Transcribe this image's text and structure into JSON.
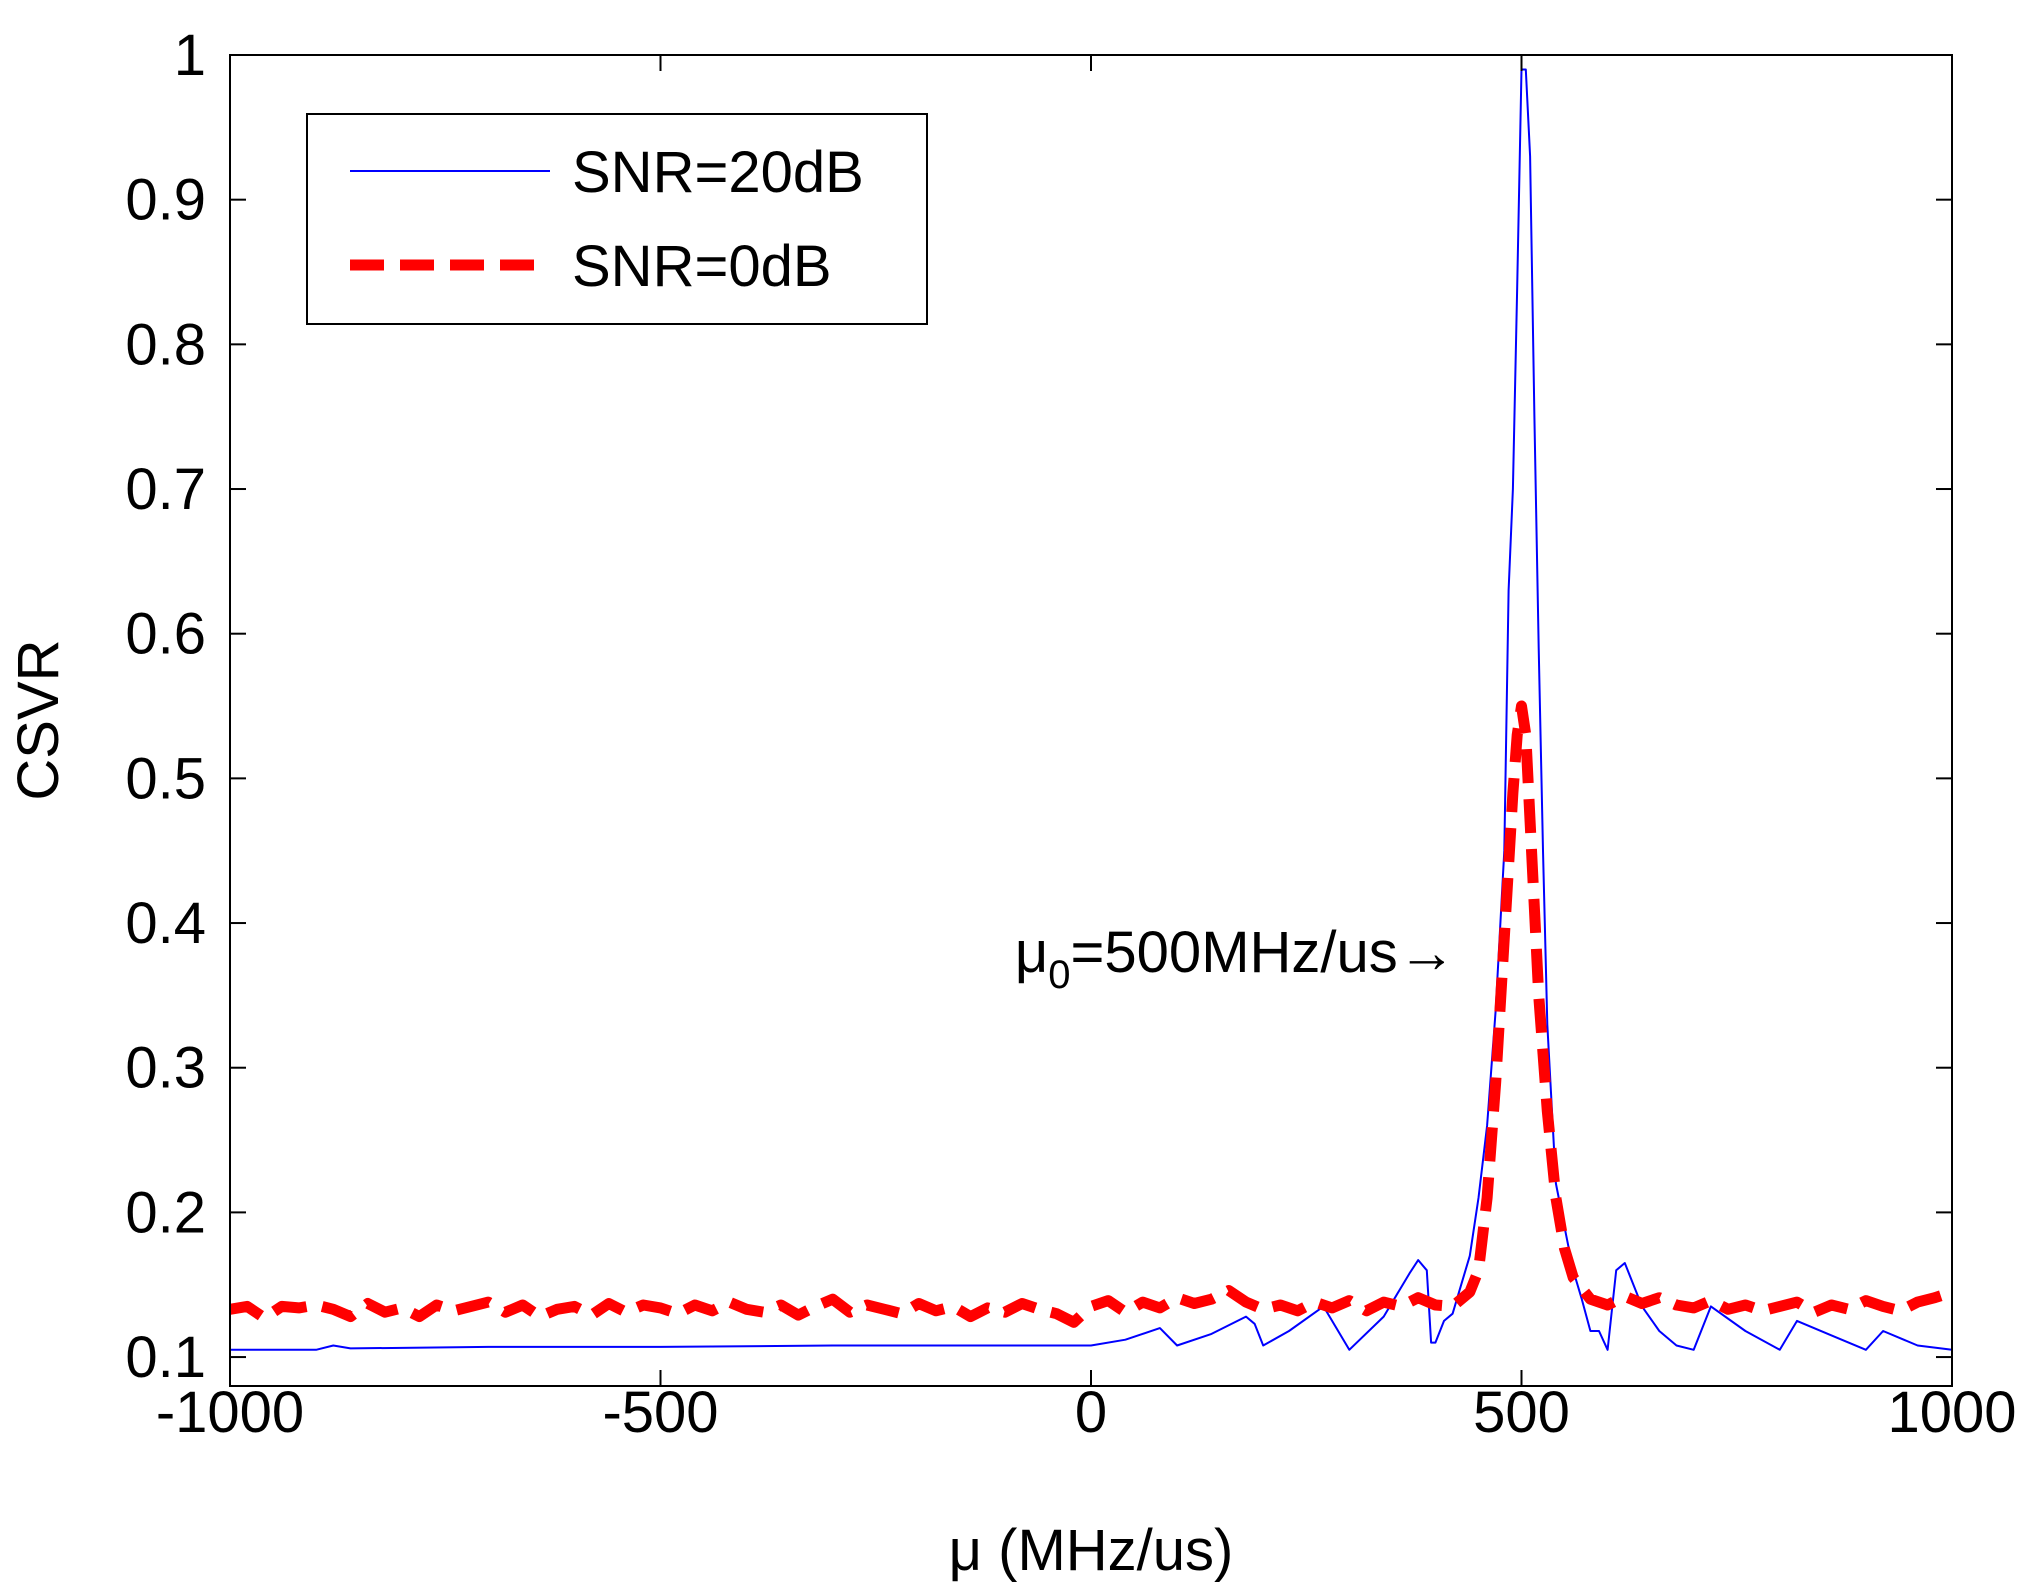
{
  "chart_data": {
    "type": "line",
    "title": "",
    "xlabel_symbol": "μ",
    "xlabel_unit": " (MHz/us)",
    "ylabel": "CSVR",
    "xlim": [
      -1000,
      1000
    ],
    "ylim": [
      0.08,
      1.0
    ],
    "xticks": [
      -1000,
      -500,
      0,
      500,
      1000
    ],
    "xtick_labels": [
      "-1000",
      "-500",
      "0",
      "500",
      "1000"
    ],
    "yticks": [
      0.1,
      0.2,
      0.3,
      0.4,
      0.5,
      0.6,
      0.7,
      0.8,
      0.9,
      1.0
    ],
    "ytick_labels": [
      "0.1",
      "0.2",
      "0.3",
      "0.4",
      "0.5",
      "0.6",
      "0.7",
      "0.8",
      "0.9",
      "1"
    ],
    "grid": false,
    "legend_position": "top-left",
    "series": [
      {
        "name": "SNR=20dB",
        "color": "#0000ff",
        "style": "solid",
        "x": [
          -1000,
          -900,
          -880,
          -860,
          -700,
          -500,
          -300,
          -100,
          0,
          40,
          80,
          100,
          140,
          180,
          190,
          200,
          230,
          270,
          300,
          340,
          370,
          380,
          390,
          395,
          400,
          410,
          420,
          430,
          440,
          450,
          460,
          470,
          480,
          485,
          490,
          495,
          500,
          505,
          510,
          515,
          520,
          525,
          530,
          540,
          550,
          560,
          570,
          580,
          590,
          600,
          610,
          620,
          640,
          660,
          680,
          700,
          720,
          760,
          800,
          820,
          860,
          900,
          920,
          960,
          1000
        ],
        "y": [
          0.105,
          0.105,
          0.108,
          0.106,
          0.107,
          0.107,
          0.108,
          0.108,
          0.108,
          0.112,
          0.12,
          0.108,
          0.116,
          0.128,
          0.123,
          0.108,
          0.118,
          0.135,
          0.105,
          0.128,
          0.158,
          0.167,
          0.16,
          0.11,
          0.11,
          0.125,
          0.13,
          0.15,
          0.17,
          0.21,
          0.26,
          0.34,
          0.45,
          0.63,
          0.7,
          0.84,
          0.99,
          0.99,
          0.93,
          0.75,
          0.59,
          0.45,
          0.33,
          0.22,
          0.19,
          0.16,
          0.14,
          0.118,
          0.118,
          0.105,
          0.16,
          0.165,
          0.135,
          0.118,
          0.108,
          0.105,
          0.135,
          0.118,
          0.105,
          0.125,
          0.115,
          0.105,
          0.118,
          0.108,
          0.105
        ]
      },
      {
        "name": "SNR=0dB",
        "color": "#ff0000",
        "style": "dashed",
        "x": [
          -1000,
          -980,
          -960,
          -940,
          -920,
          -900,
          -880,
          -860,
          -840,
          -820,
          -800,
          -780,
          -760,
          -740,
          -720,
          -700,
          -680,
          -660,
          -640,
          -620,
          -600,
          -580,
          -560,
          -540,
          -520,
          -500,
          -480,
          -460,
          -440,
          -420,
          -400,
          -380,
          -360,
          -340,
          -320,
          -300,
          -280,
          -260,
          -240,
          -220,
          -200,
          -180,
          -160,
          -140,
          -120,
          -100,
          -80,
          -60,
          -40,
          -20,
          0,
          20,
          40,
          60,
          80,
          100,
          120,
          140,
          160,
          180,
          200,
          220,
          240,
          260,
          280,
          300,
          320,
          340,
          360,
          380,
          400,
          420,
          440,
          450,
          460,
          470,
          475,
          480,
          485,
          490,
          495,
          500,
          505,
          510,
          515,
          520,
          525,
          530,
          540,
          550,
          560,
          580,
          600,
          620,
          640,
          660,
          680,
          700,
          720,
          740,
          760,
          780,
          800,
          820,
          840,
          860,
          880,
          900,
          920,
          940,
          960,
          980,
          1000
        ],
        "y": [
          0.133,
          0.135,
          0.127,
          0.135,
          0.134,
          0.136,
          0.133,
          0.128,
          0.137,
          0.131,
          0.134,
          0.128,
          0.136,
          0.132,
          0.135,
          0.138,
          0.131,
          0.136,
          0.128,
          0.133,
          0.135,
          0.129,
          0.137,
          0.131,
          0.136,
          0.134,
          0.13,
          0.136,
          0.132,
          0.138,
          0.133,
          0.131,
          0.136,
          0.129,
          0.135,
          0.14,
          0.131,
          0.136,
          0.133,
          0.13,
          0.137,
          0.132,
          0.135,
          0.128,
          0.134,
          0.131,
          0.137,
          0.133,
          0.13,
          0.124,
          0.135,
          0.139,
          0.131,
          0.138,
          0.134,
          0.141,
          0.137,
          0.14,
          0.146,
          0.138,
          0.133,
          0.136,
          0.132,
          0.138,
          0.134,
          0.139,
          0.132,
          0.138,
          0.135,
          0.141,
          0.136,
          0.135,
          0.145,
          0.16,
          0.21,
          0.29,
          0.34,
          0.39,
          0.44,
          0.49,
          0.53,
          0.55,
          0.53,
          0.47,
          0.41,
          0.35,
          0.31,
          0.27,
          0.21,
          0.175,
          0.155,
          0.14,
          0.136,
          0.142,
          0.137,
          0.141,
          0.136,
          0.134,
          0.139,
          0.133,
          0.136,
          0.132,
          0.135,
          0.138,
          0.131,
          0.136,
          0.133,
          0.139,
          0.135,
          0.132,
          0.138,
          0.141,
          0.145
        ]
      }
    ],
    "annotation": {
      "mu": "μ",
      "subscript": "0",
      "text": "=500MHz/us",
      "arrow": "→",
      "x": 80,
      "y": 0.38
    }
  }
}
